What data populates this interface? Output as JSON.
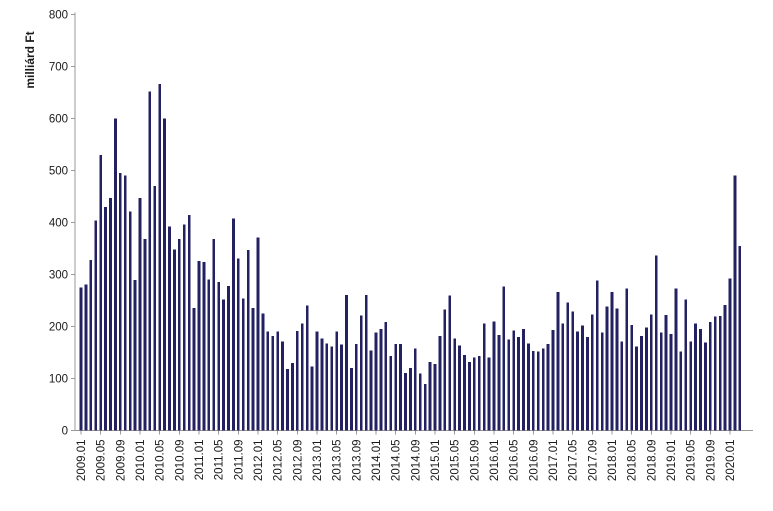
{
  "figure": {
    "background": "#ffffff",
    "bar_color": "#242162",
    "axis_color": "#9a9a9a",
    "tick_label_color": "#1a1a1a",
    "y_axis_title": "milliárd Ft"
  },
  "chart_data": {
    "type": "bar",
    "title": "",
    "xlabel": "",
    "ylabel": "milliárd Ft",
    "ylim": [
      0,
      800
    ],
    "grid": false,
    "legend": "none",
    "y_ticks": [
      0,
      100,
      200,
      300,
      400,
      500,
      600,
      700,
      800
    ],
    "x_tick_labels": [
      "2009.01",
      "2009.05",
      "2009.09",
      "2010.01",
      "2010.05",
      "2010.09",
      "2011.01",
      "2011.05",
      "2011.09",
      "2012.01",
      "2012.05",
      "2012.09",
      "2013.01",
      "2013.05",
      "2013.09",
      "2014.01",
      "2014.05",
      "2014.09",
      "2015.01",
      "2015.05",
      "2015.09",
      "2016.01",
      "2016.05",
      "2016.09",
      "2017.01",
      "2017.05",
      "2017.09",
      "2018.01",
      "2018.05",
      "2018.09",
      "2019.01",
      "2019.05",
      "2019.09",
      "2020.01"
    ],
    "categories": [
      "2009.01",
      "2009.02",
      "2009.03",
      "2009.04",
      "2009.05",
      "2009.06",
      "2009.07",
      "2009.08",
      "2009.09",
      "2009.10",
      "2009.11",
      "2009.12",
      "2010.01",
      "2010.02",
      "2010.03",
      "2010.04",
      "2010.05",
      "2010.06",
      "2010.07",
      "2010.08",
      "2010.09",
      "2010.10",
      "2010.11",
      "2010.12",
      "2011.01",
      "2011.02",
      "2011.03",
      "2011.04",
      "2011.05",
      "2011.06",
      "2011.07",
      "2011.08",
      "2011.09",
      "2011.10",
      "2011.11",
      "2011.12",
      "2012.01",
      "2012.02",
      "2012.03",
      "2012.04",
      "2012.05",
      "2012.06",
      "2012.07",
      "2012.08",
      "2012.09",
      "2012.10",
      "2012.11",
      "2012.12",
      "2013.01",
      "2013.02",
      "2013.03",
      "2013.04",
      "2013.05",
      "2013.06",
      "2013.07",
      "2013.08",
      "2013.09",
      "2013.10",
      "2013.11",
      "2013.12",
      "2014.01",
      "2014.02",
      "2014.03",
      "2014.04",
      "2014.05",
      "2014.06",
      "2014.07",
      "2014.08",
      "2014.09",
      "2014.10",
      "2014.11",
      "2014.12",
      "2015.01",
      "2015.02",
      "2015.03",
      "2015.04",
      "2015.05",
      "2015.06",
      "2015.07",
      "2015.08",
      "2015.09",
      "2015.10",
      "2015.11",
      "2015.12",
      "2016.01",
      "2016.02",
      "2016.03",
      "2016.04",
      "2016.05",
      "2016.06",
      "2016.07",
      "2016.08",
      "2016.09",
      "2016.10",
      "2016.11",
      "2016.12",
      "2017.01",
      "2017.02",
      "2017.03",
      "2017.04",
      "2017.05",
      "2017.06",
      "2017.07",
      "2017.08",
      "2017.09",
      "2017.10",
      "2017.11",
      "2017.12",
      "2018.01",
      "2018.02",
      "2018.03",
      "2018.04",
      "2018.05",
      "2018.06",
      "2018.07",
      "2018.08",
      "2018.09",
      "2018.10",
      "2018.11",
      "2018.12",
      "2019.01",
      "2019.02",
      "2019.03",
      "2019.04",
      "2019.05",
      "2019.06",
      "2019.07",
      "2019.08",
      "2019.09",
      "2019.10",
      "2019.11",
      "2019.12",
      "2020.01",
      "2020.02",
      "2020.03"
    ],
    "values": [
      275,
      281,
      328,
      404,
      530,
      430,
      447,
      600,
      495,
      490,
      421,
      289,
      447,
      368,
      652,
      470,
      666,
      600,
      392,
      348,
      368,
      396,
      414,
      236,
      326,
      324,
      290,
      368,
      286,
      252,
      278,
      408,
      331,
      254,
      347,
      236,
      371,
      225,
      190,
      182,
      190,
      171,
      118,
      130,
      191,
      206,
      240,
      123,
      190,
      177,
      167,
      162,
      190,
      165,
      261,
      120,
      166,
      221,
      261,
      154,
      188,
      195,
      209,
      143,
      166,
      166,
      111,
      120,
      158,
      110,
      89,
      132,
      128,
      182,
      233,
      260,
      177,
      163,
      145,
      132,
      140,
      143,
      206,
      140,
      210,
      184,
      277,
      175,
      192,
      180,
      195,
      167,
      153,
      152,
      158,
      166,
      193,
      266,
      206,
      246,
      229,
      190,
      202,
      180,
      223,
      288,
      188,
      238,
      266,
      235,
      171,
      273,
      203,
      162,
      182,
      198,
      223,
      337,
      188,
      222,
      186,
      273,
      152,
      252,
      171,
      206,
      195,
      169,
      209,
      219,
      220,
      241,
      292,
      490,
      355
    ]
  }
}
